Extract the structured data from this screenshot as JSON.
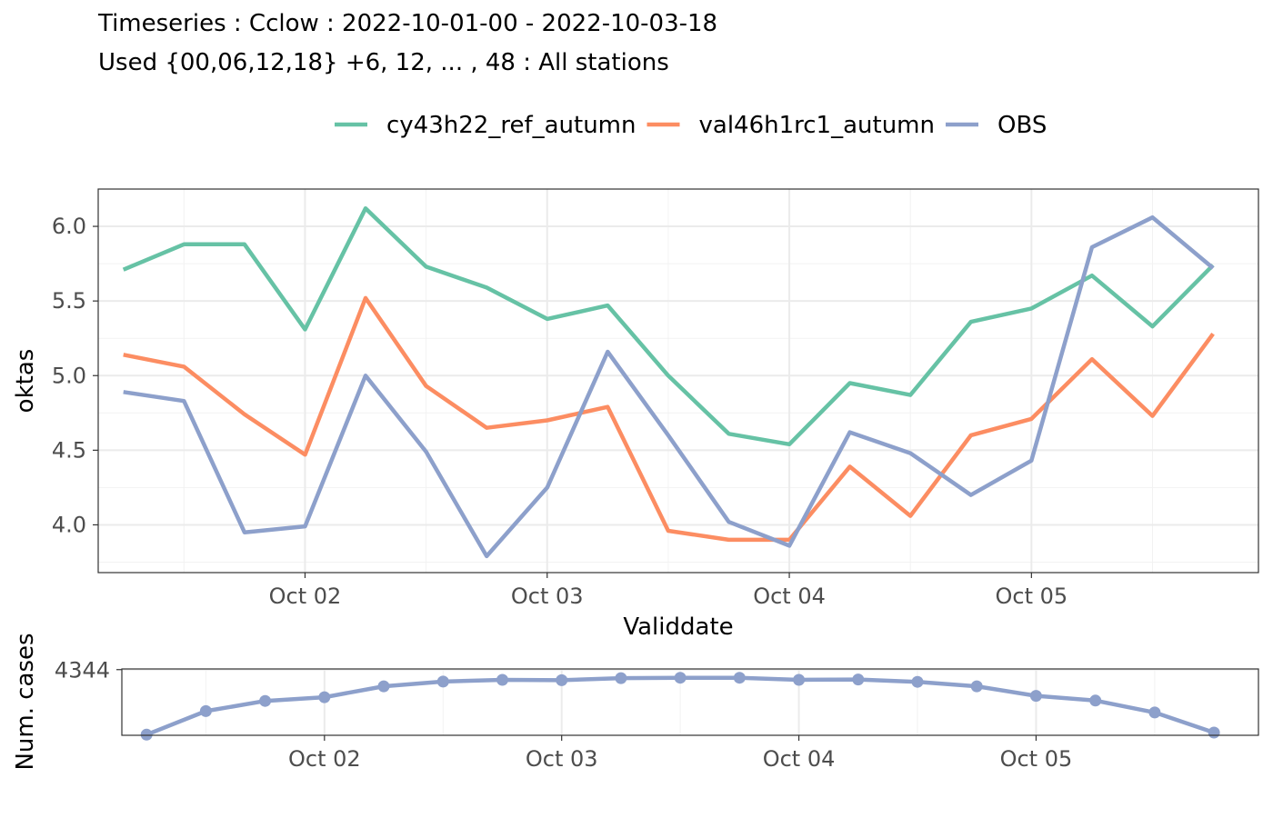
{
  "title": "Timeseries : Cclow : 2022-10-01-00 - 2022-10-03-18",
  "subtitle": "Used {00,06,12,18} +6, 12, ... , 48 : All stations",
  "chart_data": [
    {
      "type": "line",
      "title": "Timeseries : Cclow : 2022-10-01-00 - 2022-10-03-18",
      "subtitle": "Used {00,06,12,18} +6, 12, ... , 48 : All stations",
      "xlabel": "Validdate",
      "ylabel": "oktas",
      "x": [
        "2022-10-01 06:00",
        "2022-10-01 12:00",
        "2022-10-01 18:00",
        "2022-10-02 00:00",
        "2022-10-02 06:00",
        "2022-10-02 12:00",
        "2022-10-02 18:00",
        "2022-10-03 00:00",
        "2022-10-03 06:00",
        "2022-10-03 12:00",
        "2022-10-03 18:00",
        "2022-10-04 00:00",
        "2022-10-04 06:00",
        "2022-10-04 12:00",
        "2022-10-04 18:00",
        "2022-10-05 00:00",
        "2022-10-05 06:00",
        "2022-10-05 12:00",
        "2022-10-05 18:00"
      ],
      "x_ticks": [
        "2022-10-02",
        "2022-10-03",
        "2022-10-04",
        "2022-10-05"
      ],
      "x_tick_labels": [
        "Oct 02",
        "Oct 03",
        "Oct 04",
        "Oct 05"
      ],
      "xlim": [
        "2022-10-01 03:30",
        "2022-10-05 22:30"
      ],
      "y_ticks": [
        4.0,
        4.5,
        5.0,
        5.5,
        6.0
      ],
      "y_tick_labels": [
        "4.0",
        "4.5",
        "5.0",
        "5.5",
        "6.0"
      ],
      "ylim": [
        3.68,
        6.25
      ],
      "grid": true,
      "legend": "top",
      "series": [
        {
          "name": "cy43h22_ref_autumn",
          "color": "#66c2a5",
          "values": [
            5.71,
            5.88,
            5.88,
            5.31,
            6.12,
            5.73,
            5.59,
            5.38,
            5.47,
            5.0,
            4.61,
            4.54,
            4.95,
            4.87,
            5.36,
            5.45,
            5.67,
            5.33,
            5.74
          ]
        },
        {
          "name": "val46h1rc1_autumn",
          "color": "#fc8d62",
          "values": [
            5.14,
            5.06,
            4.74,
            4.47,
            5.52,
            4.93,
            4.65,
            4.7,
            4.79,
            3.96,
            3.9,
            3.9,
            4.39,
            4.06,
            4.6,
            4.71,
            5.11,
            4.73,
            5.28
          ]
        },
        {
          "name": "OBS",
          "color": "#8da0cb",
          "values": [
            4.89,
            4.83,
            3.95,
            3.99,
            5.0,
            4.49,
            3.79,
            4.25,
            5.16,
            4.6,
            4.02,
            3.86,
            4.62,
            4.48,
            4.2,
            4.43,
            5.86,
            6.06,
            5.72
          ]
        }
      ]
    },
    {
      "type": "line",
      "ylabel": "Num. cases",
      "x": [
        "2022-10-01 06:00",
        "2022-10-01 12:00",
        "2022-10-01 18:00",
        "2022-10-02 00:00",
        "2022-10-02 06:00",
        "2022-10-02 12:00",
        "2022-10-02 18:00",
        "2022-10-03 00:00",
        "2022-10-03 06:00",
        "2022-10-03 12:00",
        "2022-10-03 18:00",
        "2022-10-04 00:00",
        "2022-10-04 06:00",
        "2022-10-04 12:00",
        "2022-10-04 18:00",
        "2022-10-05 00:00",
        "2022-10-05 06:00",
        "2022-10-05 12:00",
        "2022-10-05 18:00"
      ],
      "x_ticks": [
        "2022-10-02",
        "2022-10-03",
        "2022-10-04",
        "2022-10-05"
      ],
      "x_tick_labels": [
        "Oct 02",
        "Oct 03",
        "Oct 04",
        "Oct 05"
      ],
      "xlim": [
        "2022-10-01 03:30",
        "2022-10-05 22:30"
      ],
      "y_ticks": [
        4344
      ],
      "y_tick_labels": [
        "4344"
      ],
      "ylim": [
        4151,
        4346
      ],
      "grid": true,
      "markers": true,
      "color": "#8da0cb",
      "values": [
        4153,
        4222,
        4252,
        4263,
        4295,
        4309,
        4314,
        4313,
        4319,
        4320,
        4320,
        4314,
        4315,
        4308,
        4295,
        4267,
        4253,
        4218,
        4159
      ]
    }
  ]
}
